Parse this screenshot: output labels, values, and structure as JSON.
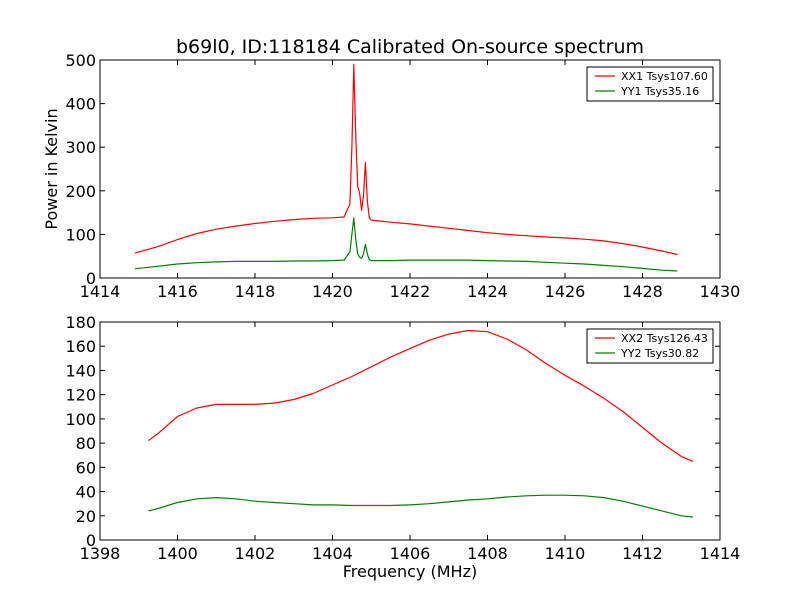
{
  "chart_data": [
    {
      "type": "line",
      "title": "b69l0, ID:118184 Calibrated On-source spectrum",
      "xlabel": "",
      "ylabel": "Power in Kelvin",
      "xlim": [
        1414,
        1430
      ],
      "ylim": [
        0,
        500
      ],
      "xticks": [
        1414,
        1416,
        1418,
        1420,
        1422,
        1424,
        1426,
        1428,
        1430
      ],
      "yticks": [
        0,
        100,
        200,
        300,
        400,
        500
      ],
      "legend": "top-right",
      "series": [
        {
          "name": "XX1 Tsys107.60",
          "color": "#ff0000",
          "x": [
            1414.9,
            1415.5,
            1416.0,
            1416.5,
            1417.0,
            1417.5,
            1418.0,
            1418.5,
            1419.0,
            1419.5,
            1420.0,
            1420.3,
            1420.45,
            1420.5,
            1420.55,
            1420.6,
            1420.65,
            1420.7,
            1420.75,
            1420.8,
            1420.85,
            1420.9,
            1420.95,
            1421.0,
            1421.05,
            1421.2,
            1421.5,
            1422.0,
            1422.5,
            1423.0,
            1423.5,
            1424.0,
            1424.5,
            1425.0,
            1425.5,
            1426.0,
            1426.5,
            1427.0,
            1427.5,
            1428.0,
            1428.5,
            1428.9
          ],
          "values": [
            57,
            72,
            88,
            102,
            112,
            119,
            125,
            130,
            134,
            137,
            138,
            140,
            170,
            300,
            490,
            330,
            210,
            195,
            155,
            190,
            265,
            175,
            138,
            133,
            132,
            131,
            128,
            124,
            119,
            114,
            109,
            104,
            100,
            97,
            94,
            92,
            89,
            85,
            79,
            71,
            62,
            54
          ]
        },
        {
          "name": "YY1 Tsys35.16",
          "color": "#008000",
          "x": [
            1414.9,
            1415.5,
            1416.0,
            1416.5,
            1417.0,
            1417.5,
            1418.0,
            1418.5,
            1419.0,
            1419.5,
            1420.0,
            1420.3,
            1420.45,
            1420.55,
            1420.6,
            1420.65,
            1420.7,
            1420.75,
            1420.8,
            1420.85,
            1420.9,
            1420.95,
            1421.0,
            1421.1,
            1421.5,
            1422.0,
            1422.5,
            1423.0,
            1423.5,
            1424.0,
            1424.5,
            1425.0,
            1425.5,
            1426.0,
            1426.5,
            1427.0,
            1427.5,
            1428.0,
            1428.5,
            1428.9
          ],
          "values": [
            21,
            27,
            32,
            35,
            37,
            38,
            38,
            38,
            39,
            39,
            40,
            41,
            60,
            138,
            90,
            55,
            48,
            45,
            55,
            77,
            55,
            42,
            40,
            40,
            40,
            41,
            41,
            41,
            41,
            40,
            39,
            38,
            36,
            34,
            32,
            29,
            26,
            22,
            18,
            16
          ]
        }
      ]
    },
    {
      "type": "line",
      "title": "",
      "xlabel": "Frequency (MHz)",
      "ylabel": "",
      "xlim": [
        1398,
        1414
      ],
      "ylim": [
        0,
        180
      ],
      "xticks": [
        1398,
        1400,
        1402,
        1404,
        1406,
        1408,
        1410,
        1412,
        1414
      ],
      "yticks": [
        0,
        20,
        40,
        60,
        80,
        100,
        120,
        140,
        160,
        180
      ],
      "legend": "top-right",
      "series": [
        {
          "name": "XX2 Tsys126.43",
          "color": "#ff0000",
          "x": [
            1399.25,
            1399.5,
            1400.0,
            1400.5,
            1401.0,
            1401.5,
            1402.0,
            1402.5,
            1403.0,
            1403.5,
            1404.0,
            1404.5,
            1405.0,
            1405.5,
            1406.0,
            1406.5,
            1407.0,
            1407.5,
            1408.0,
            1408.5,
            1409.0,
            1409.5,
            1410.0,
            1410.5,
            1411.0,
            1411.5,
            1412.0,
            1412.5,
            1413.0,
            1413.3
          ],
          "values": [
            82,
            88,
            102,
            109,
            112,
            112,
            112,
            113,
            116,
            121,
            128,
            135,
            143,
            151,
            158,
            165,
            170,
            173,
            172,
            166,
            157,
            146,
            136,
            127,
            117,
            106,
            93,
            80,
            69,
            65
          ]
        },
        {
          "name": "YY2 Tsys30.82",
          "color": "#008000",
          "x": [
            1399.25,
            1399.5,
            1400.0,
            1400.5,
            1401.0,
            1401.5,
            1402.0,
            1402.5,
            1403.0,
            1403.5,
            1404.0,
            1404.5,
            1405.0,
            1405.5,
            1406.0,
            1406.5,
            1407.0,
            1407.5,
            1408.0,
            1408.5,
            1409.0,
            1409.5,
            1410.0,
            1410.5,
            1411.0,
            1411.5,
            1412.0,
            1412.5,
            1413.0,
            1413.3
          ],
          "values": [
            24,
            26,
            31,
            34,
            35,
            34,
            32,
            31,
            30,
            29,
            29,
            28.5,
            28.5,
            28.5,
            29,
            30,
            31.5,
            33,
            34,
            35.5,
            36.5,
            37,
            37,
            36.5,
            35,
            32,
            28,
            24,
            20,
            19
          ]
        }
      ]
    }
  ]
}
